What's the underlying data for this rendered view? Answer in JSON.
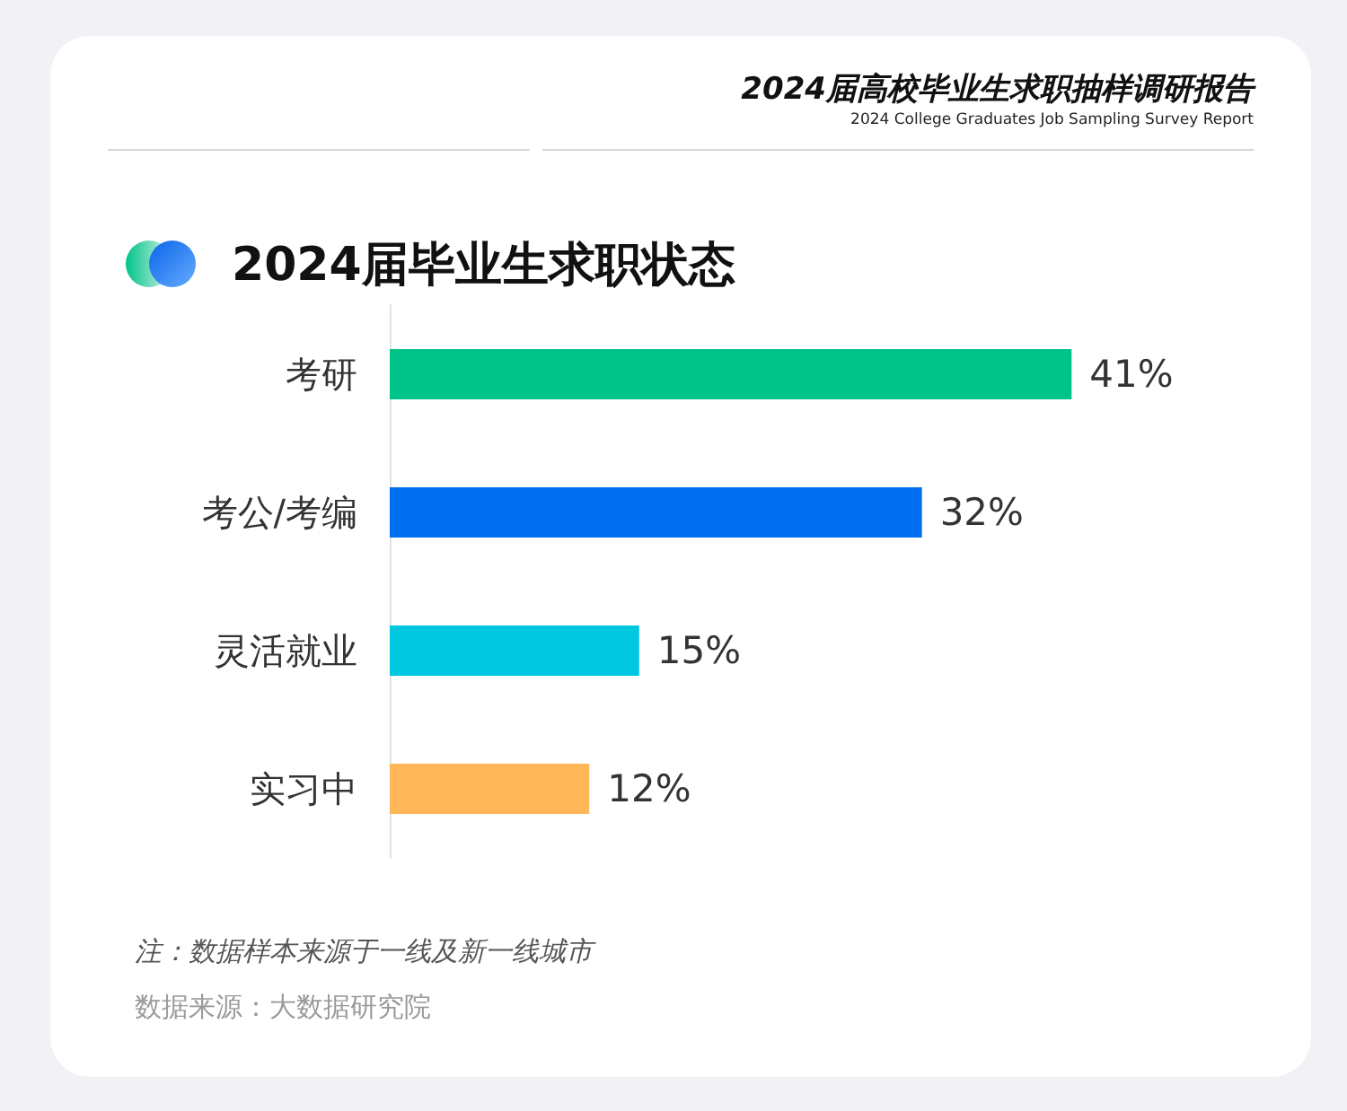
{
  "chart_data": {
    "type": "bar",
    "orientation": "horizontal",
    "title": "2024届毕业生求职状态",
    "categories": [
      "考研",
      "考公/考编",
      "灵活就业",
      "实习中"
    ],
    "values": [
      41,
      32,
      15,
      12
    ],
    "colors": [
      "#00c389",
      "#0070f0",
      "#00c8e0",
      "#ffb75a"
    ],
    "value_labels": [
      "41%",
      "32%",
      "15%",
      "12%"
    ],
    "annotations": [
      "2024届高校毕业生求职抽样调研报告",
      "2024 College Graduates Job Sampling Survey Report",
      "注：数据样本来源于一线及新一线城市",
      "数据来源：大数据研究院"
    ]
  }
}
